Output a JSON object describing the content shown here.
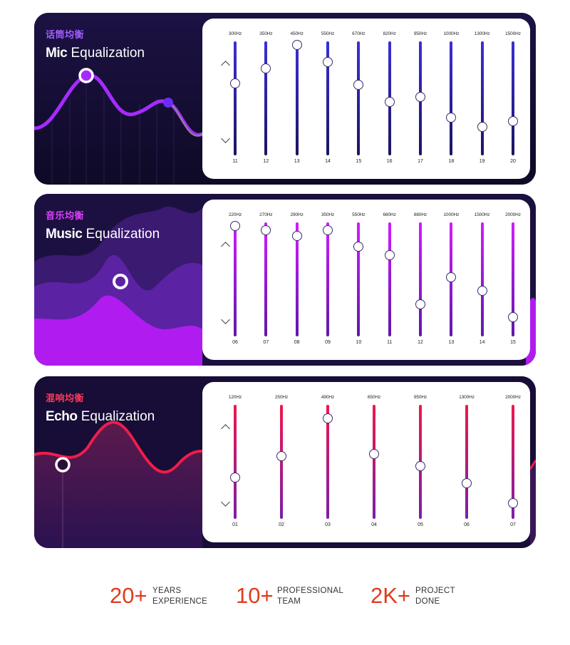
{
  "cards": [
    {
      "key": "mic",
      "title_cn": "话筒均衡",
      "title_bold": "Mic",
      "title_rest": " Equalization",
      "accent": "#9b2cf5",
      "track_top": "#3b2fd6",
      "track_bottom": "#1a1560",
      "cn_color": "#a45cff",
      "sliders": [
        {
          "freq": "300Hz",
          "num": "11",
          "level": 0.63
        },
        {
          "freq": "350Hz",
          "num": "12",
          "level": 0.76
        },
        {
          "freq": "450Hz",
          "num": "13",
          "level": 0.97
        },
        {
          "freq": "550Hz",
          "num": "14",
          "level": 0.82
        },
        {
          "freq": "670Hz",
          "num": "15",
          "level": 0.62
        },
        {
          "freq": "820Hz",
          "num": "16",
          "level": 0.47
        },
        {
          "freq": "950Hz",
          "num": "17",
          "level": 0.51
        },
        {
          "freq": "1000Hz",
          "num": "18",
          "level": 0.33
        },
        {
          "freq": "1300Hz",
          "num": "19",
          "level": 0.25
        },
        {
          "freq": "1500Hz",
          "num": "20",
          "level": 0.3
        }
      ]
    },
    {
      "key": "music",
      "title_cn": "音乐均衡",
      "title_bold": "Music",
      "title_rest": " Equalization",
      "accent": "#b21cff",
      "track_top": "#d21bff",
      "track_bottom": "#5d1aa8",
      "cn_color": "#e040ff",
      "sliders": [
        {
          "freq": "220Hz",
          "num": "06",
          "level": 0.97
        },
        {
          "freq": "270Hz",
          "num": "07",
          "level": 0.93
        },
        {
          "freq": "290Hz",
          "num": "08",
          "level": 0.88
        },
        {
          "freq": "350Hz",
          "num": "09",
          "level": 0.93
        },
        {
          "freq": "550Hz",
          "num": "10",
          "level": 0.79
        },
        {
          "freq": "680Hz",
          "num": "11",
          "level": 0.71
        },
        {
          "freq": "880Hz",
          "num": "12",
          "level": 0.28
        },
        {
          "freq": "1000Hz",
          "num": "13",
          "level": 0.52
        },
        {
          "freq": "1500Hz",
          "num": "14",
          "level": 0.4
        },
        {
          "freq": "2000Hz",
          "num": "15",
          "level": 0.17
        }
      ]
    },
    {
      "key": "echo",
      "title_cn": "混响均衡",
      "title_bold": "Echo",
      "title_rest": " Equalization",
      "accent": "#ee1d4b",
      "track_top": "#f0184a",
      "track_bottom": "#7a1fa8",
      "cn_color": "#ff3a5a",
      "sliders": [
        {
          "freq": "120Hz",
          "num": "01",
          "level": 0.36
        },
        {
          "freq": "250Hz",
          "num": "02",
          "level": 0.55
        },
        {
          "freq": "490Hz",
          "num": "03",
          "level": 0.88
        },
        {
          "freq": "650Hz",
          "num": "04",
          "level": 0.57
        },
        {
          "freq": "950Hz",
          "num": "05",
          "level": 0.46
        },
        {
          "freq": "1300Hz",
          "num": "06",
          "level": 0.31
        },
        {
          "freq": "2000Hz",
          "num": "07",
          "level": 0.14
        }
      ]
    }
  ],
  "stats": [
    {
      "value": "20+",
      "line1": "YEARS",
      "line2": "EXPERIENCE"
    },
    {
      "value": "10+",
      "line1": "PROFESSIONAL",
      "line2": "TEAM"
    },
    {
      "value": "2K+",
      "line1": "PROJECT",
      "line2": "DONE"
    }
  ],
  "icons": {
    "up": "chevron-up-icon",
    "down": "chevron-down-icon"
  },
  "colors": {
    "stat_accent": "#e03b1d",
    "card_bg": "#130c2e"
  }
}
